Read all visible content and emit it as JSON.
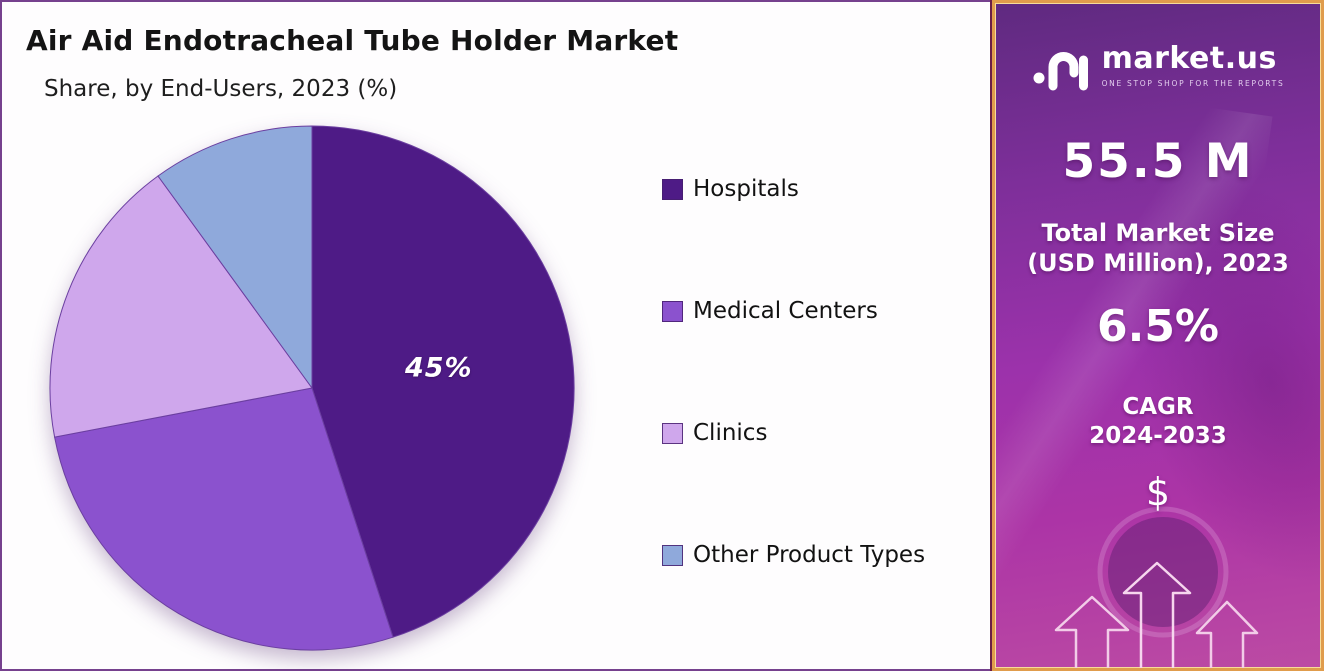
{
  "chart_panel": {
    "title": "Air Aid Endotracheal Tube Holder Market",
    "subtitle": "Share, by End-Users, 2023 (%)"
  },
  "chart_data": {
    "type": "pie",
    "title": "Air Aid Endotracheal Tube Holder Market",
    "subtitle": "Share, by End-Users, 2023 (%)",
    "categories": [
      "Hospitals",
      "Medical Centers",
      "Clinics",
      "Other Product Types"
    ],
    "values": [
      45,
      27,
      18,
      10
    ],
    "unit": "%",
    "colors": [
      "#4E1B86",
      "#8B52CE",
      "#CFA7EC",
      "#8FA9DB"
    ],
    "slice_stroke": "#6B3FA0",
    "start_angle": "top, clockwise",
    "legend_position": "right",
    "data_labels": [
      {
        "index": 0,
        "text": "45%"
      }
    ]
  },
  "sidebar": {
    "brand": "market.us",
    "tagline": "ONE STOP SHOP FOR THE REPORTS",
    "market_size": {
      "value": "55.5 M",
      "label_line1": "Total Market Size",
      "label_line2": "(USD Million), 2023"
    },
    "cagr": {
      "value": "6.5%",
      "label_line1": "CAGR",
      "label_line2": "2024-2033"
    },
    "dollar_symbol": "$",
    "colors": {
      "border_gold": "#E09C4C",
      "gradient_top": "#5F2A80",
      "gradient_middle": "#9C32AB",
      "gradient_bottom": "#BC4BA3",
      "panel_border_purple": "#76418E"
    }
  }
}
